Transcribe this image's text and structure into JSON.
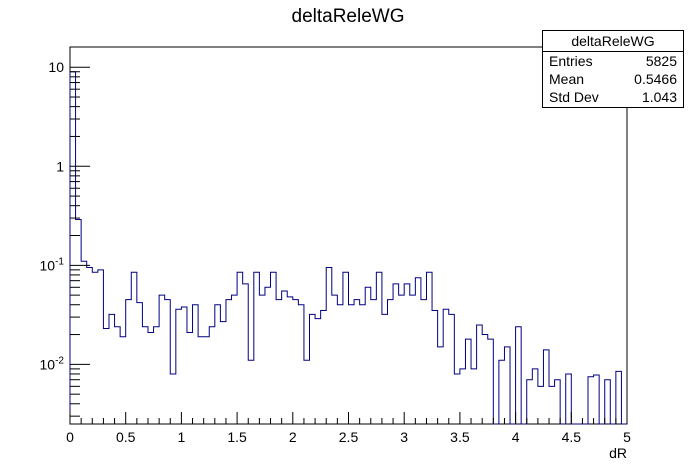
{
  "chart_data": {
    "type": "histogram",
    "title": "deltaReleWG",
    "xlabel": "dR",
    "ylabel": "",
    "xlim": [
      0,
      5
    ],
    "ylim": [
      0.0025,
      16
    ],
    "yscale": "log",
    "bin_width": 0.05,
    "x_ticks": [
      "0",
      "0.5",
      "1",
      "1.5",
      "2",
      "2.5",
      "3",
      "3.5",
      "4",
      "4.5",
      "5"
    ],
    "y_ticks": [
      {
        "value": 0.01,
        "base": "10",
        "exp": "-2"
      },
      {
        "value": 0.1,
        "base": "10",
        "exp": "-1"
      },
      {
        "value": 1,
        "base": "1",
        "exp": ""
      },
      {
        "value": 10,
        "base": "10",
        "exp": ""
      }
    ],
    "bins": [
      [
        0.0,
        9.0
      ],
      [
        0.05,
        0.29
      ],
      [
        0.1,
        0.11
      ],
      [
        0.15,
        0.095
      ],
      [
        0.2,
        0.085
      ],
      [
        0.25,
        0.09
      ],
      [
        0.3,
        0.023
      ],
      [
        0.35,
        0.032
      ],
      [
        0.4,
        0.024
      ],
      [
        0.45,
        0.019
      ],
      [
        0.5,
        0.045
      ],
      [
        0.55,
        0.085
      ],
      [
        0.6,
        0.042
      ],
      [
        0.65,
        0.024
      ],
      [
        0.7,
        0.021
      ],
      [
        0.75,
        0.024
      ],
      [
        0.8,
        0.05
      ],
      [
        0.85,
        0.045
      ],
      [
        0.9,
        0.008
      ],
      [
        0.95,
        0.036
      ],
      [
        1.0,
        0.038
      ],
      [
        1.05,
        0.021
      ],
      [
        1.1,
        0.04
      ],
      [
        1.15,
        0.019
      ],
      [
        1.2,
        0.019
      ],
      [
        1.25,
        0.024
      ],
      [
        1.3,
        0.04
      ],
      [
        1.35,
        0.027
      ],
      [
        1.4,
        0.045
      ],
      [
        1.45,
        0.05
      ],
      [
        1.5,
        0.085
      ],
      [
        1.55,
        0.065
      ],
      [
        1.6,
        0.011
      ],
      [
        1.65,
        0.085
      ],
      [
        1.7,
        0.05
      ],
      [
        1.75,
        0.06
      ],
      [
        1.8,
        0.085
      ],
      [
        1.85,
        0.045
      ],
      [
        1.9,
        0.055
      ],
      [
        1.95,
        0.048
      ],
      [
        2.0,
        0.045
      ],
      [
        2.05,
        0.04
      ],
      [
        2.1,
        0.011
      ],
      [
        2.15,
        0.032
      ],
      [
        2.2,
        0.029
      ],
      [
        2.25,
        0.035
      ],
      [
        2.3,
        0.095
      ],
      [
        2.35,
        0.05
      ],
      [
        2.4,
        0.04
      ],
      [
        2.45,
        0.085
      ],
      [
        2.5,
        0.04
      ],
      [
        2.55,
        0.045
      ],
      [
        2.6,
        0.04
      ],
      [
        2.65,
        0.06
      ],
      [
        2.7,
        0.045
      ],
      [
        2.75,
        0.085
      ],
      [
        2.8,
        0.032
      ],
      [
        2.85,
        0.045
      ],
      [
        2.9,
        0.065
      ],
      [
        2.95,
        0.05
      ],
      [
        3.0,
        0.065
      ],
      [
        3.05,
        0.05
      ],
      [
        3.1,
        0.075
      ],
      [
        3.15,
        0.045
      ],
      [
        3.2,
        0.085
      ],
      [
        3.25,
        0.035
      ],
      [
        3.3,
        0.015
      ],
      [
        3.35,
        0.036
      ],
      [
        3.4,
        0.032
      ],
      [
        3.45,
        0.008
      ],
      [
        3.5,
        0.009
      ],
      [
        3.55,
        0.018
      ],
      [
        3.6,
        0.009
      ],
      [
        3.65,
        0.025
      ],
      [
        3.7,
        0.02
      ],
      [
        3.75,
        0.018
      ],
      [
        3.8,
        0.0025
      ],
      [
        3.85,
        0.011
      ],
      [
        3.9,
        0.015
      ],
      [
        3.95,
        0.0025
      ],
      [
        4.0,
        0.024
      ],
      [
        4.05,
        0.0025
      ],
      [
        4.1,
        0.007
      ],
      [
        4.15,
        0.009
      ],
      [
        4.2,
        0.006
      ],
      [
        4.25,
        0.014
      ],
      [
        4.3,
        0.006
      ],
      [
        4.35,
        0.007
      ],
      [
        4.4,
        0.0025
      ],
      [
        4.45,
        0.008
      ],
      [
        4.5,
        0.0025
      ],
      [
        4.55,
        0.0025
      ],
      [
        4.6,
        0.0025
      ],
      [
        4.65,
        0.0075
      ],
      [
        4.7,
        0.0078
      ],
      [
        4.75,
        0.0025
      ],
      [
        4.8,
        0.007
      ],
      [
        4.85,
        0.0025
      ],
      [
        4.9,
        0.0085
      ],
      [
        4.95,
        0.0025
      ]
    ],
    "grid": false,
    "line_color": "#000080"
  },
  "stats": {
    "title": "deltaReleWG",
    "rows": [
      {
        "label": "Entries",
        "value": "5825"
      },
      {
        "label": "Mean",
        "value": "0.5466"
      },
      {
        "label": "Std Dev",
        "value": "1.043"
      }
    ]
  }
}
